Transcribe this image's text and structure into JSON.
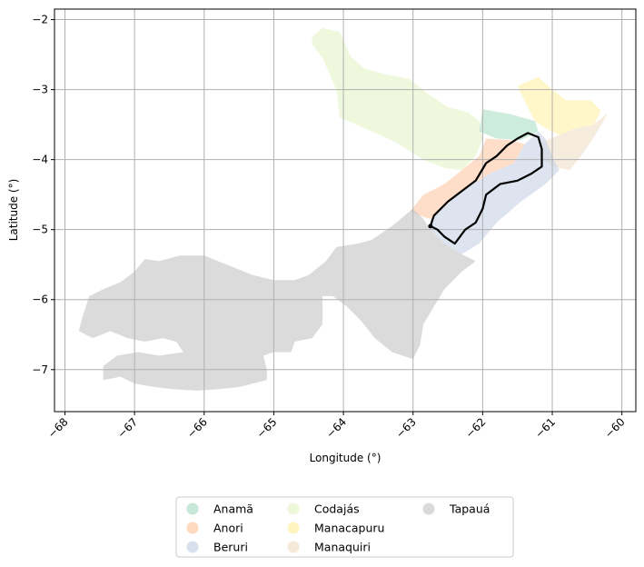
{
  "chart_data": {
    "type": "map",
    "xlabel": "Longitude (°)",
    "ylabel": "Latitude (°)",
    "xlim": [
      -68.15,
      -59.8
    ],
    "ylim": [
      -7.6,
      -1.85
    ],
    "xticks": [
      -68,
      -67,
      -66,
      -65,
      -64,
      -63,
      -62,
      -61,
      -60
    ],
    "yticks": [
      -2,
      -3,
      -4,
      -5,
      -6,
      -7
    ],
    "grid": true,
    "legend": {
      "position": "bottom",
      "columns": 3,
      "entries": [
        {
          "name": "Anamã",
          "color": "#b3e2cd"
        },
        {
          "name": "Anori",
          "color": "#fdcdac"
        },
        {
          "name": "Beruri",
          "color": "#cbd5e8"
        },
        {
          "name": "Codajás",
          "color": "#e6f5c9"
        },
        {
          "name": "Manacapuru",
          "color": "#fff2ae"
        },
        {
          "name": "Manaquiri",
          "color": "#f1e2cc"
        },
        {
          "name": "Tapauá",
          "color": "#cccccc"
        }
      ]
    },
    "regions": [
      {
        "name": "Codajás",
        "color": "#e6f5c9",
        "coords": [
          [
            -64.45,
            -2.25
          ],
          [
            -64.3,
            -2.12
          ],
          [
            -64.05,
            -2.18
          ],
          [
            -63.9,
            -2.52
          ],
          [
            -63.7,
            -2.7
          ],
          [
            -63.4,
            -2.78
          ],
          [
            -63.05,
            -2.85
          ],
          [
            -62.8,
            -3.05
          ],
          [
            -62.5,
            -3.25
          ],
          [
            -62.2,
            -3.33
          ],
          [
            -62.05,
            -3.45
          ],
          [
            -62.0,
            -3.7
          ],
          [
            -62.1,
            -3.95
          ],
          [
            -62.3,
            -4.15
          ],
          [
            -62.55,
            -4.12
          ],
          [
            -62.85,
            -4.0
          ],
          [
            -63.25,
            -3.75
          ],
          [
            -63.7,
            -3.55
          ],
          [
            -64.05,
            -3.4
          ],
          [
            -64.1,
            -3.0
          ],
          [
            -64.3,
            -2.55
          ],
          [
            -64.45,
            -2.35
          ]
        ]
      },
      {
        "name": "Anamã",
        "color": "#b3e2cd",
        "coords": [
          [
            -62.0,
            -3.28
          ],
          [
            -61.6,
            -3.35
          ],
          [
            -61.25,
            -3.45
          ],
          [
            -61.2,
            -3.6
          ],
          [
            -61.45,
            -3.72
          ],
          [
            -61.8,
            -3.7
          ],
          [
            -62.05,
            -3.6
          ]
        ]
      },
      {
        "name": "Manacapuru",
        "color": "#fff2ae",
        "coords": [
          [
            -61.5,
            -2.95
          ],
          [
            -61.2,
            -2.82
          ],
          [
            -61.0,
            -3.0
          ],
          [
            -60.8,
            -3.15
          ],
          [
            -60.45,
            -3.15
          ],
          [
            -60.3,
            -3.3
          ],
          [
            -60.4,
            -3.5
          ],
          [
            -60.65,
            -3.55
          ],
          [
            -60.9,
            -3.65
          ],
          [
            -61.1,
            -3.55
          ],
          [
            -61.25,
            -3.45
          ],
          [
            -61.35,
            -3.25
          ]
        ]
      },
      {
        "name": "Manaquiri",
        "color": "#f1e2cc",
        "coords": [
          [
            -60.65,
            -3.55
          ],
          [
            -60.4,
            -3.5
          ],
          [
            -60.2,
            -3.33
          ],
          [
            -60.35,
            -3.6
          ],
          [
            -60.55,
            -3.9
          ],
          [
            -60.75,
            -4.15
          ],
          [
            -61.0,
            -4.1
          ],
          [
            -61.2,
            -3.95
          ],
          [
            -61.15,
            -3.75
          ],
          [
            -60.9,
            -3.65
          ]
        ]
      },
      {
        "name": "Anori",
        "color": "#fdcdac",
        "coords": [
          [
            -62.85,
            -4.5
          ],
          [
            -62.55,
            -4.35
          ],
          [
            -62.3,
            -4.15
          ],
          [
            -62.05,
            -3.95
          ],
          [
            -61.95,
            -3.7
          ],
          [
            -61.6,
            -3.72
          ],
          [
            -61.4,
            -3.78
          ],
          [
            -61.55,
            -4.05
          ],
          [
            -61.9,
            -4.2
          ],
          [
            -62.3,
            -4.45
          ],
          [
            -62.75,
            -4.85
          ],
          [
            -63.05,
            -4.75
          ]
        ]
      },
      {
        "name": "Beruri",
        "color": "#cbd5e8",
        "coords": [
          [
            -62.75,
            -4.85
          ],
          [
            -62.3,
            -4.45
          ],
          [
            -61.9,
            -4.2
          ],
          [
            -61.55,
            -4.05
          ],
          [
            -61.4,
            -3.78
          ],
          [
            -61.2,
            -3.6
          ],
          [
            -61.1,
            -3.7
          ],
          [
            -61.0,
            -3.95
          ],
          [
            -60.9,
            -4.15
          ],
          [
            -61.1,
            -4.35
          ],
          [
            -61.45,
            -4.6
          ],
          [
            -61.8,
            -4.9
          ],
          [
            -62.05,
            -5.2
          ],
          [
            -62.3,
            -5.35
          ],
          [
            -62.55,
            -5.2
          ],
          [
            -62.75,
            -5.0
          ]
        ]
      },
      {
        "name": "Tapauá",
        "color": "#cccccc",
        "coords": [
          [
            -63.0,
            -4.7
          ],
          [
            -63.3,
            -4.95
          ],
          [
            -63.6,
            -5.15
          ],
          [
            -63.8,
            -5.2
          ],
          [
            -64.1,
            -5.25
          ],
          [
            -64.25,
            -5.45
          ],
          [
            -64.5,
            -5.65
          ],
          [
            -64.7,
            -5.72
          ],
          [
            -65.0,
            -5.72
          ],
          [
            -65.3,
            -5.65
          ],
          [
            -65.55,
            -5.55
          ],
          [
            -65.8,
            -5.45
          ],
          [
            -66.0,
            -5.37
          ],
          [
            -66.35,
            -5.37
          ],
          [
            -66.65,
            -5.45
          ],
          [
            -66.85,
            -5.42
          ],
          [
            -67.0,
            -5.6
          ],
          [
            -67.2,
            -5.75
          ],
          [
            -67.45,
            -5.85
          ],
          [
            -67.65,
            -5.95
          ],
          [
            -67.75,
            -6.25
          ],
          [
            -67.8,
            -6.45
          ],
          [
            -67.6,
            -6.55
          ],
          [
            -67.35,
            -6.45
          ],
          [
            -67.1,
            -6.55
          ],
          [
            -66.85,
            -6.6
          ],
          [
            -66.6,
            -6.55
          ],
          [
            -66.4,
            -6.6
          ],
          [
            -66.3,
            -6.75
          ],
          [
            -66.65,
            -6.8
          ],
          [
            -66.95,
            -6.75
          ],
          [
            -67.25,
            -6.8
          ],
          [
            -67.45,
            -6.95
          ],
          [
            -67.45,
            -7.15
          ],
          [
            -67.2,
            -7.1
          ],
          [
            -67.0,
            -7.2
          ],
          [
            -66.7,
            -7.25
          ],
          [
            -66.45,
            -7.28
          ],
          [
            -66.1,
            -7.3
          ],
          [
            -65.8,
            -7.28
          ],
          [
            -65.5,
            -7.25
          ],
          [
            -65.1,
            -7.15
          ],
          [
            -65.1,
            -7.0
          ],
          [
            -65.15,
            -6.8
          ],
          [
            -65.0,
            -6.75
          ],
          [
            -64.75,
            -6.75
          ],
          [
            -64.7,
            -6.6
          ],
          [
            -64.45,
            -6.55
          ],
          [
            -64.3,
            -6.35
          ],
          [
            -64.3,
            -6.1
          ],
          [
            -64.3,
            -5.95
          ],
          [
            -64.15,
            -5.95
          ],
          [
            -63.95,
            -6.1
          ],
          [
            -63.75,
            -6.3
          ],
          [
            -63.55,
            -6.55
          ],
          [
            -63.3,
            -6.75
          ],
          [
            -63.0,
            -6.85
          ],
          [
            -62.9,
            -6.65
          ],
          [
            -62.85,
            -6.35
          ],
          [
            -62.7,
            -6.1
          ],
          [
            -62.55,
            -5.85
          ],
          [
            -62.3,
            -5.6
          ],
          [
            -62.1,
            -5.45
          ],
          [
            -62.3,
            -5.35
          ],
          [
            -62.55,
            -5.2
          ],
          [
            -62.75,
            -5.0
          ],
          [
            -62.85,
            -4.85
          ]
        ]
      }
    ],
    "outline": {
      "name": "",
      "color": "#000000",
      "coords": [
        [
          -62.75,
          -4.95
        ],
        [
          -62.7,
          -4.8
        ],
        [
          -62.5,
          -4.6
        ],
        [
          -62.3,
          -4.45
        ],
        [
          -62.1,
          -4.3
        ],
        [
          -61.95,
          -4.05
        ],
        [
          -61.8,
          -3.95
        ],
        [
          -61.65,
          -3.8
        ],
        [
          -61.5,
          -3.7
        ],
        [
          -61.35,
          -3.62
        ],
        [
          -61.2,
          -3.68
        ],
        [
          -61.15,
          -3.85
        ],
        [
          -61.15,
          -4.1
        ],
        [
          -61.3,
          -4.2
        ],
        [
          -61.5,
          -4.3
        ],
        [
          -61.75,
          -4.35
        ],
        [
          -61.95,
          -4.5
        ],
        [
          -62.0,
          -4.7
        ],
        [
          -62.1,
          -4.9
        ],
        [
          -62.25,
          -5.0
        ],
        [
          -62.4,
          -5.2
        ],
        [
          -62.55,
          -5.1
        ],
        [
          -62.65,
          -5.0
        ]
      ]
    }
  }
}
